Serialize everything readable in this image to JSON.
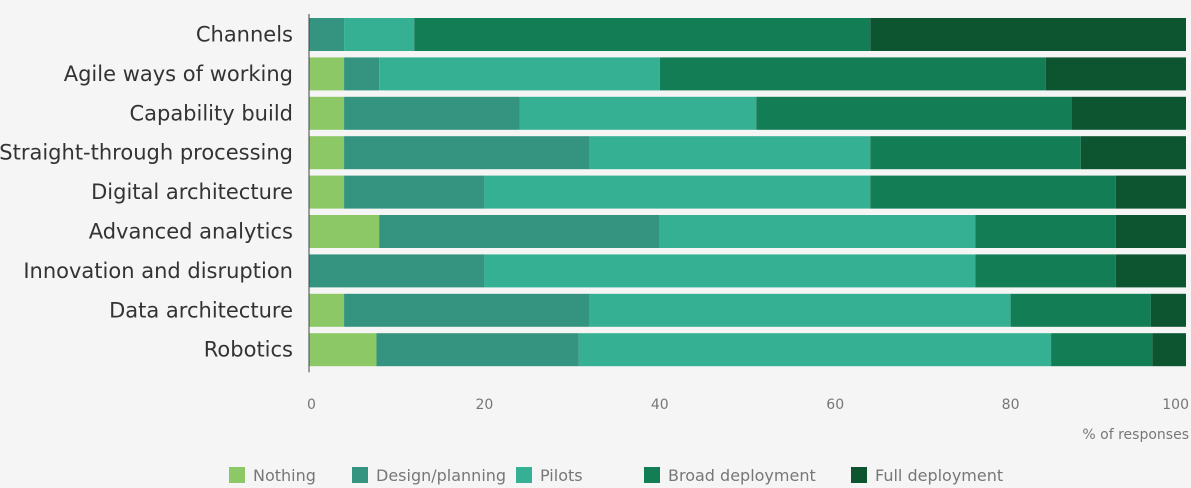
{
  "chart_data": {
    "type": "bar",
    "orientation": "horizontal",
    "stacked": true,
    "categories": [
      "Channels",
      "Agile ways of working",
      "Capability build",
      "Straight-through processing",
      "Digital architecture",
      "Advanced analytics",
      "Innovation and disruption",
      "Data architecture",
      "Robotics"
    ],
    "series": [
      {
        "name": "Nothing",
        "color": "#8cc866",
        "values": [
          0,
          4,
          4,
          4,
          4,
          8,
          0,
          4,
          8
        ]
      },
      {
        "name": "Design/planning",
        "color": "#359480",
        "values": [
          4,
          4,
          20,
          28,
          16,
          32,
          20,
          28,
          24
        ]
      },
      {
        "name": "Pilots",
        "color": "#36b093",
        "values": [
          8,
          32,
          27,
          32,
          44,
          36,
          56,
          48,
          56
        ]
      },
      {
        "name": "Broad deployment",
        "color": "#137d56",
        "values": [
          52,
          44,
          36,
          24,
          28,
          16,
          16,
          16,
          12
        ]
      },
      {
        "name": "Full deployment",
        "color": "#0d5431",
        "values": [
          36,
          16,
          13,
          12,
          8,
          8,
          8,
          4,
          4
        ]
      }
    ],
    "xlabel": "% of responses",
    "xlim": [
      0,
      100
    ],
    "xticks": [
      0,
      20,
      40,
      60,
      80,
      100
    ],
    "legend_position": "bottom",
    "grid": false
  }
}
